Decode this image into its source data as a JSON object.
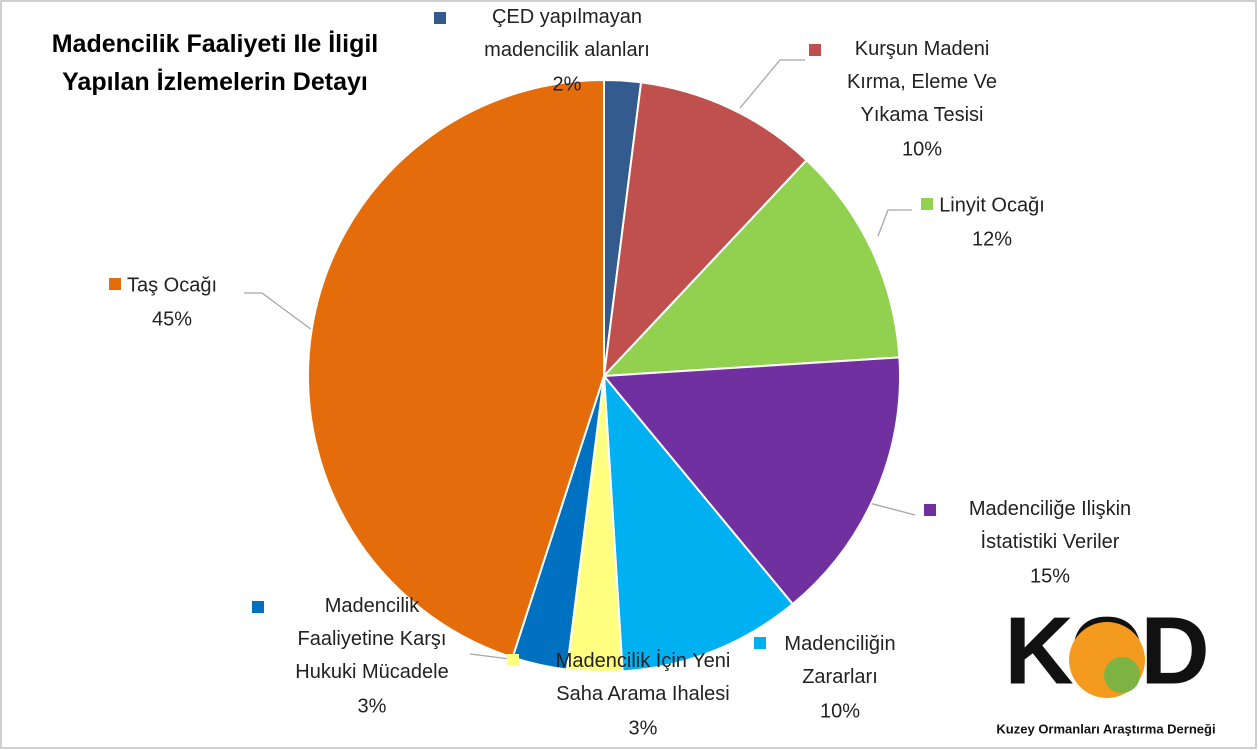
{
  "chart_data": {
    "type": "pie",
    "title": "Madencilik Faaliyeti Ile İligil\nYapılan İzlemelerin Detayı",
    "categories": [
      "ÇED yapılmayan\nmadencilik alanları",
      "Kurşun Madeni\nKırma, Eleme Ve\nYıkama Tesisi",
      "Linyit Ocağı",
      "Madenciliğe Ilişkin\nİstatistiki Veriler",
      "Madenciliğin\nZararları",
      "Madencilik İçin Yeni\nSaha Arama  Ihalesi",
      "Madencilik\nFaaliyetine Karşı\nHukuki Mücadele",
      "Taş Ocağı"
    ],
    "values": [
      2,
      10,
      12,
      15,
      10,
      3,
      3,
      45
    ],
    "value_labels": [
      "2%",
      "10%",
      "12%",
      "15%",
      "10%",
      "3%",
      "3%",
      "45%"
    ],
    "colors": [
      "#335b8e",
      "#c0504d",
      "#92d050",
      "#7030a0",
      "#00b0f0",
      "#ffff80",
      "#0070c0",
      "#e46c0a"
    ]
  },
  "logo": {
    "text": "KOD",
    "subtitle": "Kuzey Ormanları Araştırma Derneği"
  }
}
